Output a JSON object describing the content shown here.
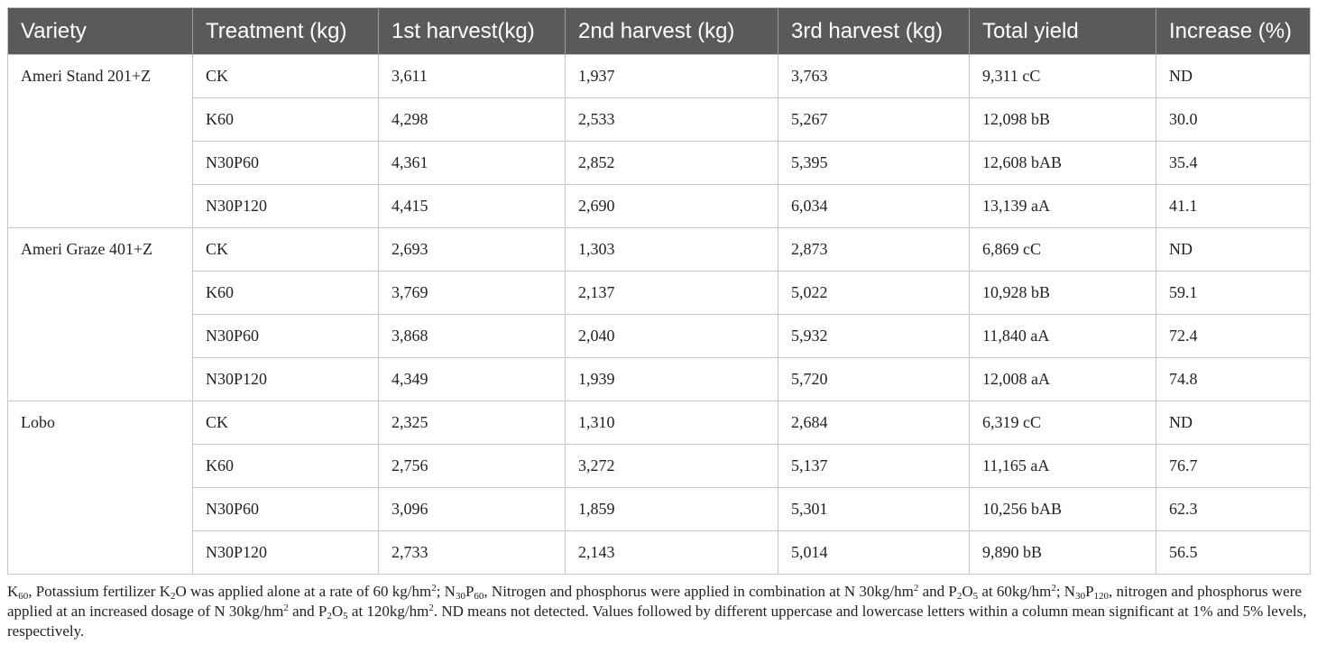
{
  "table": {
    "headers": [
      "Variety",
      "Treatment (kg)",
      "1st harvest(kg)",
      "2nd harvest (kg)",
      "3rd harvest (kg)",
      "Total yield",
      "Increase (%)"
    ],
    "groups": [
      {
        "variety": "Ameri Stand 201+Z",
        "rows": [
          [
            "CK",
            "3,611",
            "1,937",
            "3,763",
            "9,311 cC",
            "ND"
          ],
          [
            "K60",
            "4,298",
            "2,533",
            "5,267",
            "12,098 bB",
            "30.0"
          ],
          [
            "N30P60",
            "4,361",
            "2,852",
            "5,395",
            "12,608 bAB",
            "35.4"
          ],
          [
            "N30P120",
            "4,415",
            "2,690",
            "6,034",
            "13,139 aA",
            "41.1"
          ]
        ]
      },
      {
        "variety": "Ameri Graze 401+Z",
        "rows": [
          [
            "CK",
            "2,693",
            "1,303",
            "2,873",
            "6,869 cC",
            "ND"
          ],
          [
            "K60",
            "3,769",
            "2,137",
            "5,022",
            "10,928 bB",
            "59.1"
          ],
          [
            "N30P60",
            "3,868",
            "2,040",
            "5,932",
            "11,840 aA",
            "72.4"
          ],
          [
            "N30P120",
            "4,349",
            "1,939",
            "5,720",
            "12,008 aA",
            "74.8"
          ]
        ]
      },
      {
        "variety": "Lobo",
        "rows": [
          [
            "CK",
            "2,325",
            "1,310",
            "2,684",
            "6,319 cC",
            "ND"
          ],
          [
            "K60",
            "2,756",
            "3,272",
            "5,137",
            "11,165 aA",
            "76.7"
          ],
          [
            "N30P60",
            "3,096",
            "1,859",
            "5,301",
            "10,256 bAB",
            "62.3"
          ],
          [
            "N30P120",
            "2,733",
            "2,143",
            "5,014",
            "9,890 bB",
            "56.5"
          ]
        ]
      }
    ]
  },
  "footnote": {
    "parts": [
      {
        "t": "K"
      },
      {
        "sub": "60"
      },
      {
        "t": ", Potassium fertilizer K"
      },
      {
        "sub": "2"
      },
      {
        "t": "O was applied alone at a rate of 60 kg/hm"
      },
      {
        "sup": "2"
      },
      {
        "t": "; N"
      },
      {
        "sub": "30"
      },
      {
        "t": "P"
      },
      {
        "sub": "60"
      },
      {
        "t": ", Nitrogen and phosphorus were applied in combination at N 30kg/hm"
      },
      {
        "sup": "2"
      },
      {
        "t": " and P"
      },
      {
        "sub": "2"
      },
      {
        "t": "O"
      },
      {
        "sub": "5"
      },
      {
        "t": " at 60kg/hm"
      },
      {
        "sup": "2"
      },
      {
        "t": "; N"
      },
      {
        "sub": "30"
      },
      {
        "t": "P"
      },
      {
        "sub": "120"
      },
      {
        "t": ", nitrogen and phosphorus were applied at an increased dosage of N 30kg/hm"
      },
      {
        "sup": "2"
      },
      {
        "t": " and P"
      },
      {
        "sub": "2"
      },
      {
        "t": "O"
      },
      {
        "sub": "5"
      },
      {
        "t": " at 120kg/hm"
      },
      {
        "sup": "2"
      },
      {
        "t": ". ND means not detected. Values followed by different uppercase and lowercase letters within a column mean significant at 1% and 5% levels, respectively."
      }
    ]
  }
}
